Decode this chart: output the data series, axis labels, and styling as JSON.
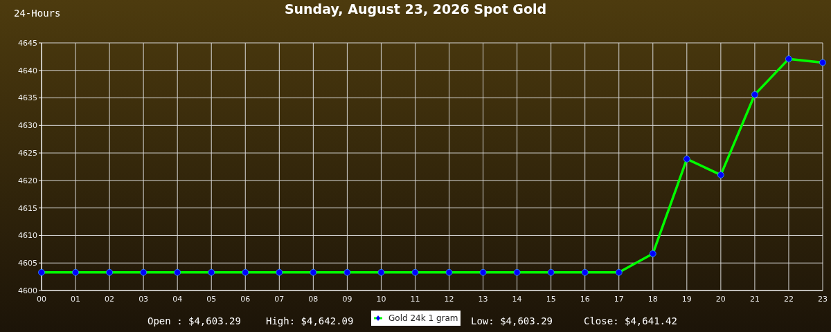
{
  "chart_data": {
    "type": "line",
    "title": "Sunday, August 23, 2026 Spot Gold",
    "categories": [
      "00",
      "01",
      "02",
      "03",
      "04",
      "05",
      "06",
      "07",
      "08",
      "09",
      "10",
      "11",
      "12",
      "13",
      "14",
      "15",
      "16",
      "17",
      "18",
      "19",
      "20",
      "21",
      "22",
      "23"
    ],
    "series": [
      {
        "name": "Gold 24k 1 gram",
        "color": "#00ff00",
        "values": [
          4603.29,
          4603.29,
          4603.29,
          4603.29,
          4603.29,
          4603.29,
          4603.29,
          4603.29,
          4603.29,
          4603.29,
          4603.29,
          4603.29,
          4603.29,
          4603.29,
          4603.29,
          4603.29,
          4603.29,
          4603.29,
          4606.7,
          4623.9,
          4621.0,
          4635.6,
          4642.09,
          4641.42
        ]
      }
    ],
    "ylim": [
      4600,
      4645
    ],
    "yticks": [
      4600,
      4605,
      4610,
      4615,
      4620,
      4625,
      4630,
      4635,
      4640,
      4645
    ],
    "grid": true,
    "legend": "bottom",
    "marker": "circle",
    "line_style": "solid",
    "annotations": [
      "24-Hours",
      "Open : $4,603.29",
      "High: $4,642.09",
      "Low: $4,603.29",
      "Close: $4,641.42"
    ]
  }
}
